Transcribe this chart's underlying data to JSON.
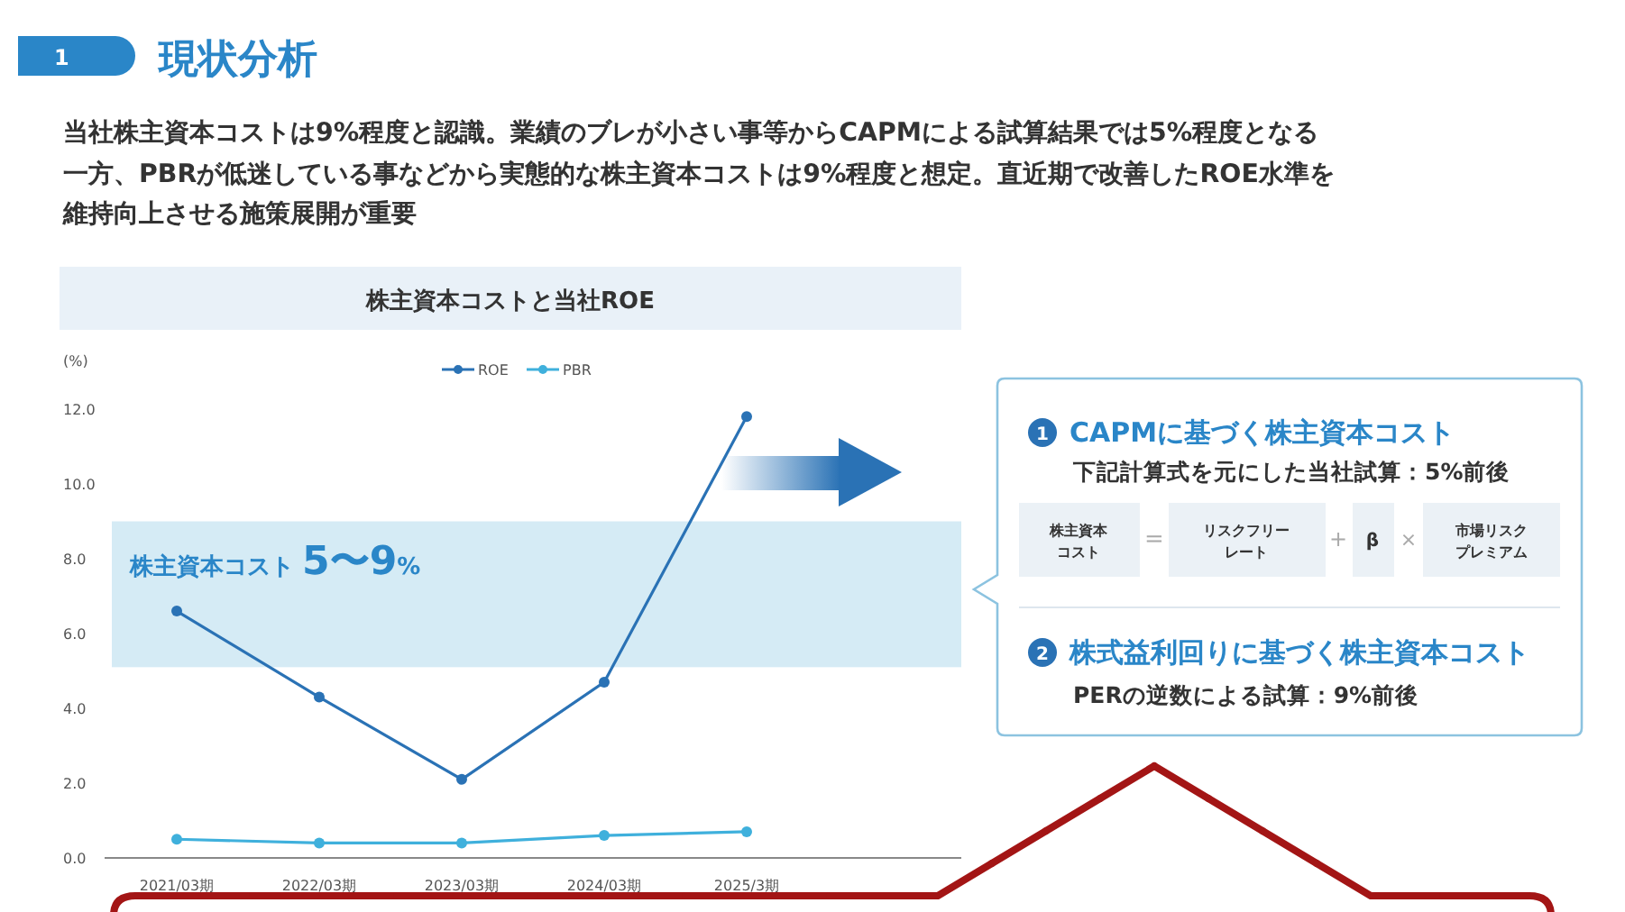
{
  "chart_data": [
    {
      "type": "other",
      "title": "現状分析",
      "annotations": [
        "1",
        "当社株主資本コストは9%程度と認識。業績のブレが小さい事等からCAPMによる試算結果では5%程度となる",
        "一方、PBRが低迷している事などから実態的な株主資本コストは9%程度と想定。直近期で改善したROE水準を",
        "維持向上させる施策展開が重要"
      ]
    },
    {
      "type": "line",
      "title": "株主資本コストと当社ROE",
      "ylabel": "(%)",
      "categories": [
        "2021/03期",
        "2022/03期",
        "2023/03期",
        "2024/03期",
        "2025/3期",
        null
      ],
      "series": [
        {
          "name": "ROE",
          "color": "#2a72b5",
          "values": [
            6.6,
            4.3,
            2.1,
            4.7,
            11.8,
            null
          ]
        },
        {
          "name": "PBR",
          "color": "#3fb0dc",
          "values": [
            0.5,
            0.4,
            0.4,
            0.6,
            0.7,
            null
          ]
        }
      ],
      "ylim": [
        0,
        12
      ],
      "yticks": [
        {
          "value": 0,
          "label": "0.0"
        },
        {
          "value": 2,
          "label": "2.0"
        },
        {
          "value": 4,
          "label": "4.0"
        },
        {
          "value": 6,
          "label": "6.0"
        },
        {
          "value": 8,
          "label": "8.0"
        },
        {
          "value": 10,
          "label": "10.0"
        },
        {
          "value": 12,
          "label": "12.0"
        }
      ],
      "bands": [
        {
          "axis": "y",
          "from": 5.1,
          "to": 9.0,
          "label": "株主資本コスト 5〜9%",
          "color": "#d5ebf5"
        }
      ],
      "marker": "circle",
      "legend": "top",
      "grid": false
    },
    {
      "type": "other",
      "annotations": [
        "1",
        "CAPMに基づく株主資本コスト",
        "下記計算式を元にした当社試算：5%前後",
        "株主資本",
        "コスト",
        "=",
        "リスクフリー",
        "レート",
        "+",
        "β",
        "×",
        "市場リスク",
        "プレミアム",
        "2",
        "株式益利回りに基づく株主資本コスト",
        "PERの逆数による試算：9%前後"
      ]
    }
  ]
}
